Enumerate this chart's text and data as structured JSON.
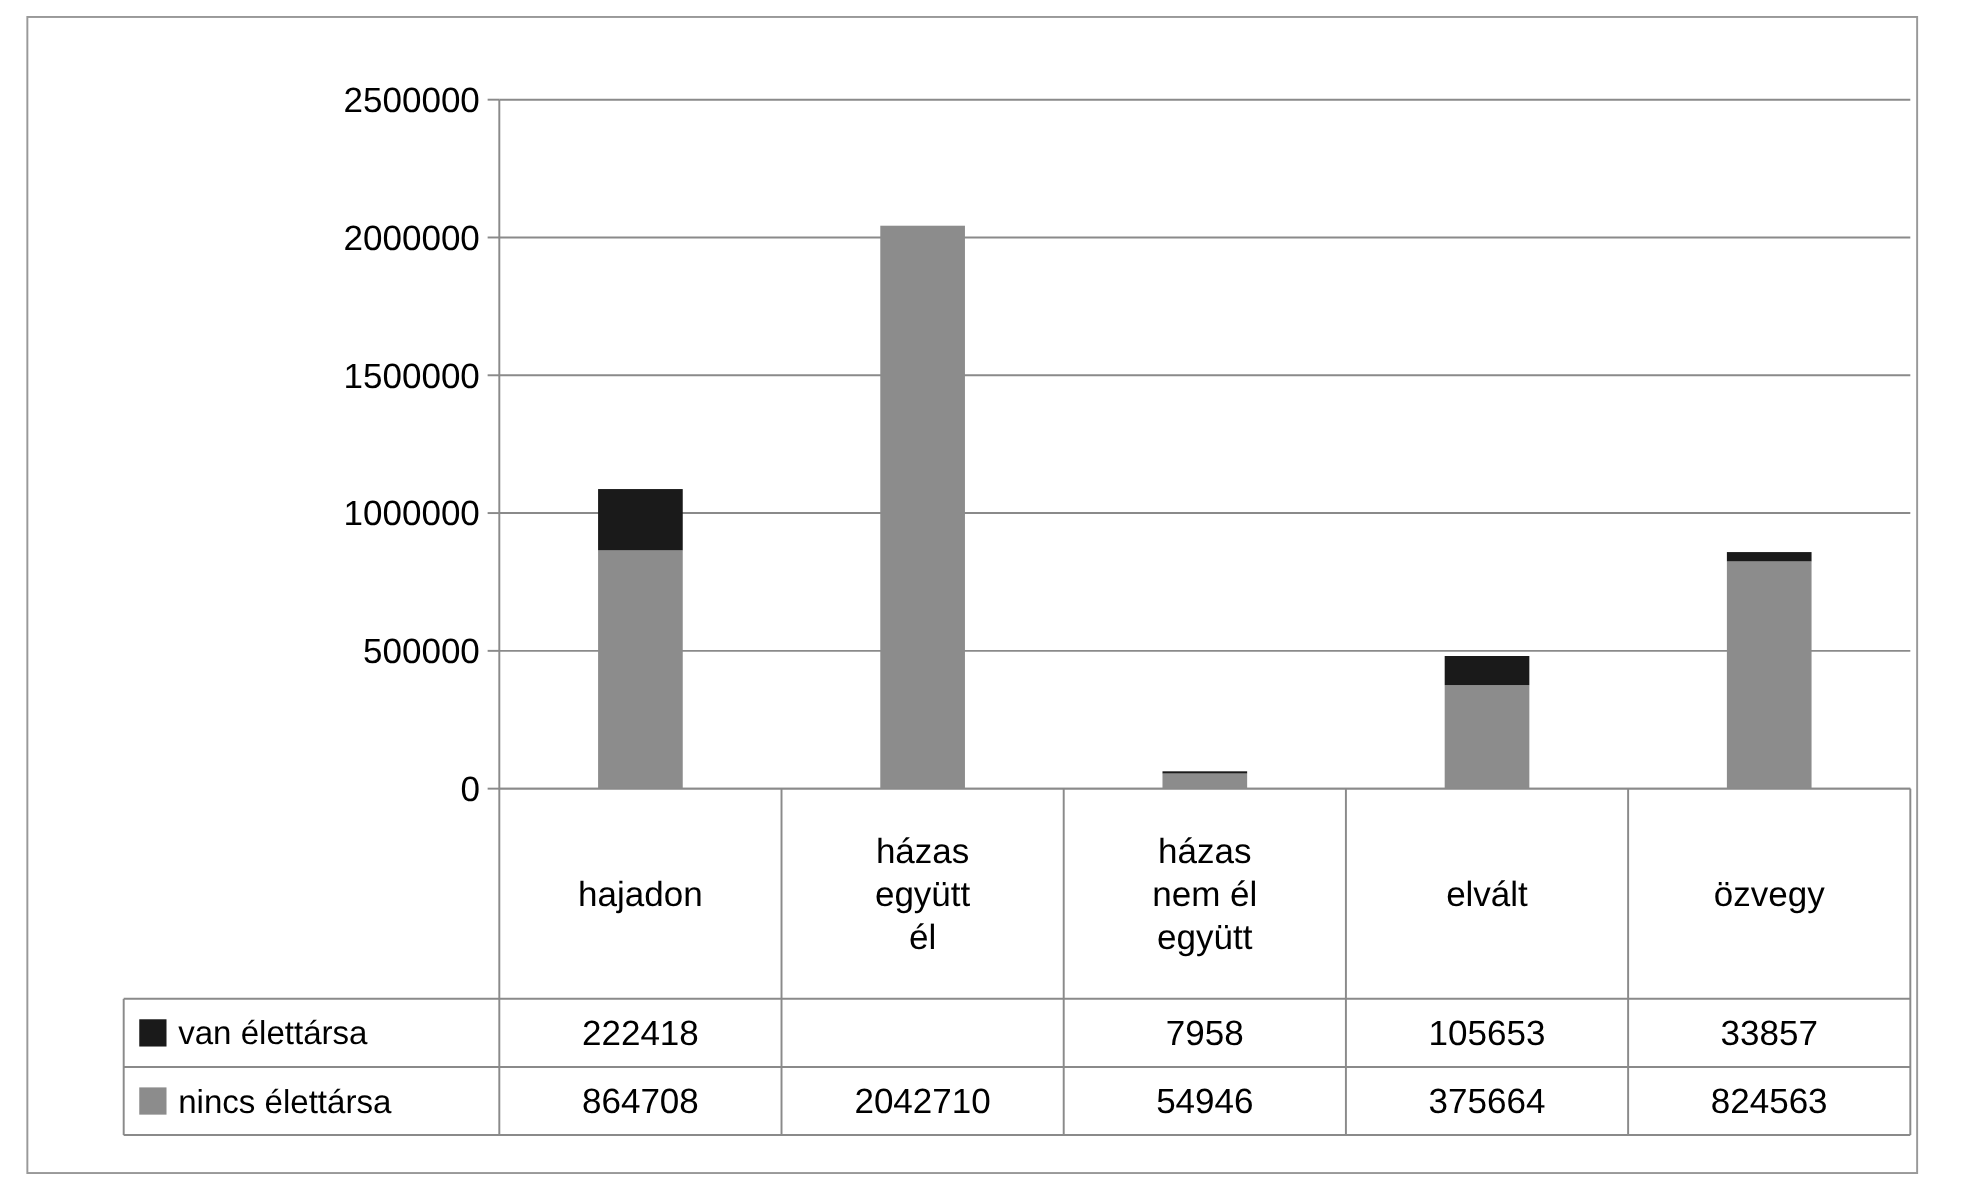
{
  "chart_data": {
    "type": "bar",
    "stacked": true,
    "categories": [
      "hajadon",
      "házas együtt él",
      "házas nem él együtt",
      "elvált",
      "özvegy"
    ],
    "series": [
      {
        "name": "nincs élettársa",
        "color": "#8c8c8c",
        "values": [
          864708,
          2042710,
          54946,
          375664,
          824563
        ]
      },
      {
        "name": "van élettársa",
        "color": "#1a1a1a",
        "values": [
          222418,
          null,
          7958,
          105653,
          33857
        ]
      }
    ],
    "ylim": [
      0,
      2500000
    ],
    "yticks": [
      0,
      500000,
      1000000,
      1500000,
      2000000,
      2500000
    ],
    "grid": "y",
    "legend": "bottom left",
    "data_labels": true
  }
}
